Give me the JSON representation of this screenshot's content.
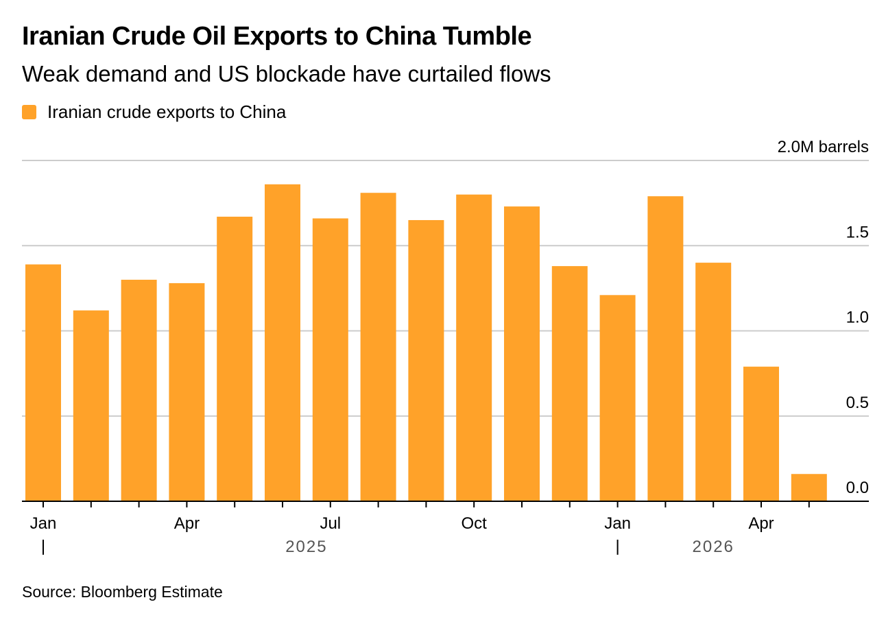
{
  "title": "Iranian Crude Oil Exports to China Tumble",
  "subtitle": "Weak demand and US blockade have curtailed flows",
  "source": "Source: Bloomberg Estimate",
  "colors": {
    "bar": "#FFA229",
    "grid": "#CCCCCC",
    "axis": "#000000",
    "year_label": "#555555"
  },
  "chart_data": {
    "type": "bar",
    "unit": "M barrels",
    "legend": {
      "entries": [
        "Iranian crude exports to China"
      ],
      "placement": "top-left"
    },
    "categories": [
      "2025-01",
      "2025-02",
      "2025-03",
      "2025-04",
      "2025-05",
      "2025-06",
      "2025-07",
      "2025-08",
      "2025-09",
      "2025-10",
      "2025-11",
      "2025-12",
      "2026-01",
      "2026-02",
      "2026-03",
      "2026-04",
      "2026-05"
    ],
    "series": [
      {
        "name": "Iranian crude exports to China",
        "values": [
          1.39,
          1.12,
          1.3,
          1.28,
          1.67,
          1.86,
          1.66,
          1.81,
          1.65,
          1.8,
          1.73,
          1.38,
          1.21,
          1.79,
          1.4,
          0.79,
          0.16
        ]
      }
    ],
    "ylim": [
      0,
      2.0
    ],
    "y_ticks": [
      {
        "value": 0.0,
        "label": "0.0"
      },
      {
        "value": 0.5,
        "label": "0.5"
      },
      {
        "value": 1.0,
        "label": "1.0"
      },
      {
        "value": 1.5,
        "label": "1.5"
      },
      {
        "value": 2.0,
        "label": "2.0M barrels"
      }
    ],
    "x_tick_labels": [
      {
        "index": 0,
        "label": "Jan"
      },
      {
        "index": 3,
        "label": "Apr"
      },
      {
        "index": 6,
        "label": "Jul"
      },
      {
        "index": 9,
        "label": "Oct"
      },
      {
        "index": 12,
        "label": "Jan"
      },
      {
        "index": 15,
        "label": "Apr"
      }
    ],
    "year_labels": [
      {
        "start_index": 0,
        "label": "2025"
      },
      {
        "start_index": 12,
        "label": "2026"
      }
    ],
    "grid": true,
    "y_axis_side": "right"
  }
}
